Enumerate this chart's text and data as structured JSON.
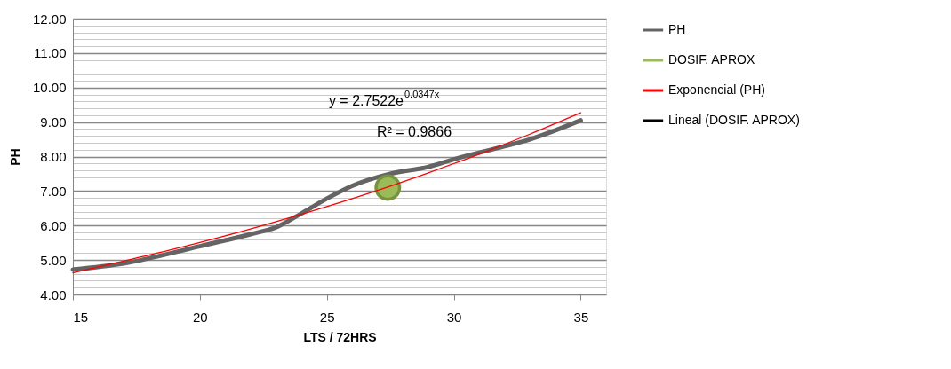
{
  "chart_data": {
    "type": "line",
    "xlabel": "LTS / 72HRS",
    "ylabel": "PH",
    "xlim": [
      15,
      36
    ],
    "xticks": [
      15,
      20,
      25,
      30,
      35
    ],
    "ylim": [
      4,
      12
    ],
    "yticks": [
      {
        "value": 4,
        "label": "4.00"
      },
      {
        "value": 4.2,
        "label": null
      },
      {
        "value": 4.4,
        "label": null
      },
      {
        "value": 4.6,
        "label": null
      },
      {
        "value": 4.8,
        "label": null
      },
      {
        "value": 5,
        "label": "5.00"
      },
      {
        "value": 5.2,
        "label": null
      },
      {
        "value": 5.4,
        "label": null
      },
      {
        "value": 5.6,
        "label": null
      },
      {
        "value": 5.8,
        "label": null
      },
      {
        "value": 6,
        "label": "6.00"
      },
      {
        "value": 6.2,
        "label": null
      },
      {
        "value": 6.4,
        "label": null
      },
      {
        "value": 6.6,
        "label": null
      },
      {
        "value": 6.8,
        "label": null
      },
      {
        "value": 7,
        "label": "7.00"
      },
      {
        "value": 7.2,
        "label": null
      },
      {
        "value": 7.4,
        "label": null
      },
      {
        "value": 7.6,
        "label": null
      },
      {
        "value": 7.8,
        "label": null
      },
      {
        "value": 8,
        "label": "8.00"
      },
      {
        "value": 8.2,
        "label": null
      },
      {
        "value": 8.4,
        "label": null
      },
      {
        "value": 8.6,
        "label": null
      },
      {
        "value": 8.8,
        "label": null
      },
      {
        "value": 9,
        "label": "9.00"
      },
      {
        "value": 9.2,
        "label": null
      },
      {
        "value": 9.4,
        "label": null
      },
      {
        "value": 9.6,
        "label": null
      },
      {
        "value": 9.8,
        "label": null
      },
      {
        "value": 10,
        "label": "10.00"
      },
      {
        "value": 10.2,
        "label": null
      },
      {
        "value": 10.4,
        "label": null
      },
      {
        "value": 10.6,
        "label": null
      },
      {
        "value": 10.8,
        "label": null
      },
      {
        "value": 11,
        "label": "11.00"
      },
      {
        "value": 11.2,
        "label": null
      },
      {
        "value": 11.4,
        "label": null
      },
      {
        "value": 11.6,
        "label": null
      },
      {
        "value": 11.8,
        "label": null
      },
      {
        "value": 12,
        "label": "12.00"
      }
    ],
    "grid": "y",
    "legend": "right",
    "annotations": [
      "y = 2.7522e$^{0.0347x}$",
      "R² = 0.9866"
    ],
    "series": [
      {
        "name": "PH",
        "color": "#646464",
        "marker": "none",
        "x": [
          15,
          17,
          20,
          22,
          23,
          24,
          25,
          26,
          27.5,
          29,
          30,
          32,
          33,
          35
        ],
        "values": [
          4.72,
          4.9,
          5.4,
          5.75,
          5.95,
          6.35,
          6.78,
          7.15,
          7.5,
          7.7,
          7.92,
          8.3,
          8.5,
          9.05
        ]
      },
      {
        "name": "DOSIF. APROX",
        "type": "scatter",
        "color": "#9bbb59",
        "marker": "circle",
        "x": [
          27.4
        ],
        "values": [
          7.1
        ]
      },
      {
        "name": "Exponencial (PH)",
        "color": "#ff0000",
        "marker": "none",
        "x": [
          15,
          17,
          19,
          21,
          23,
          25,
          27,
          29,
          31,
          33,
          35
        ],
        "values": [
          4.63,
          4.97,
          5.32,
          5.7,
          6.11,
          6.55,
          7.02,
          7.53,
          8.07,
          8.65,
          9.27
        ]
      },
      {
        "name": "Lineal (DOSIF. APROX)",
        "color": "#000000",
        "marker": "none"
      }
    ]
  }
}
